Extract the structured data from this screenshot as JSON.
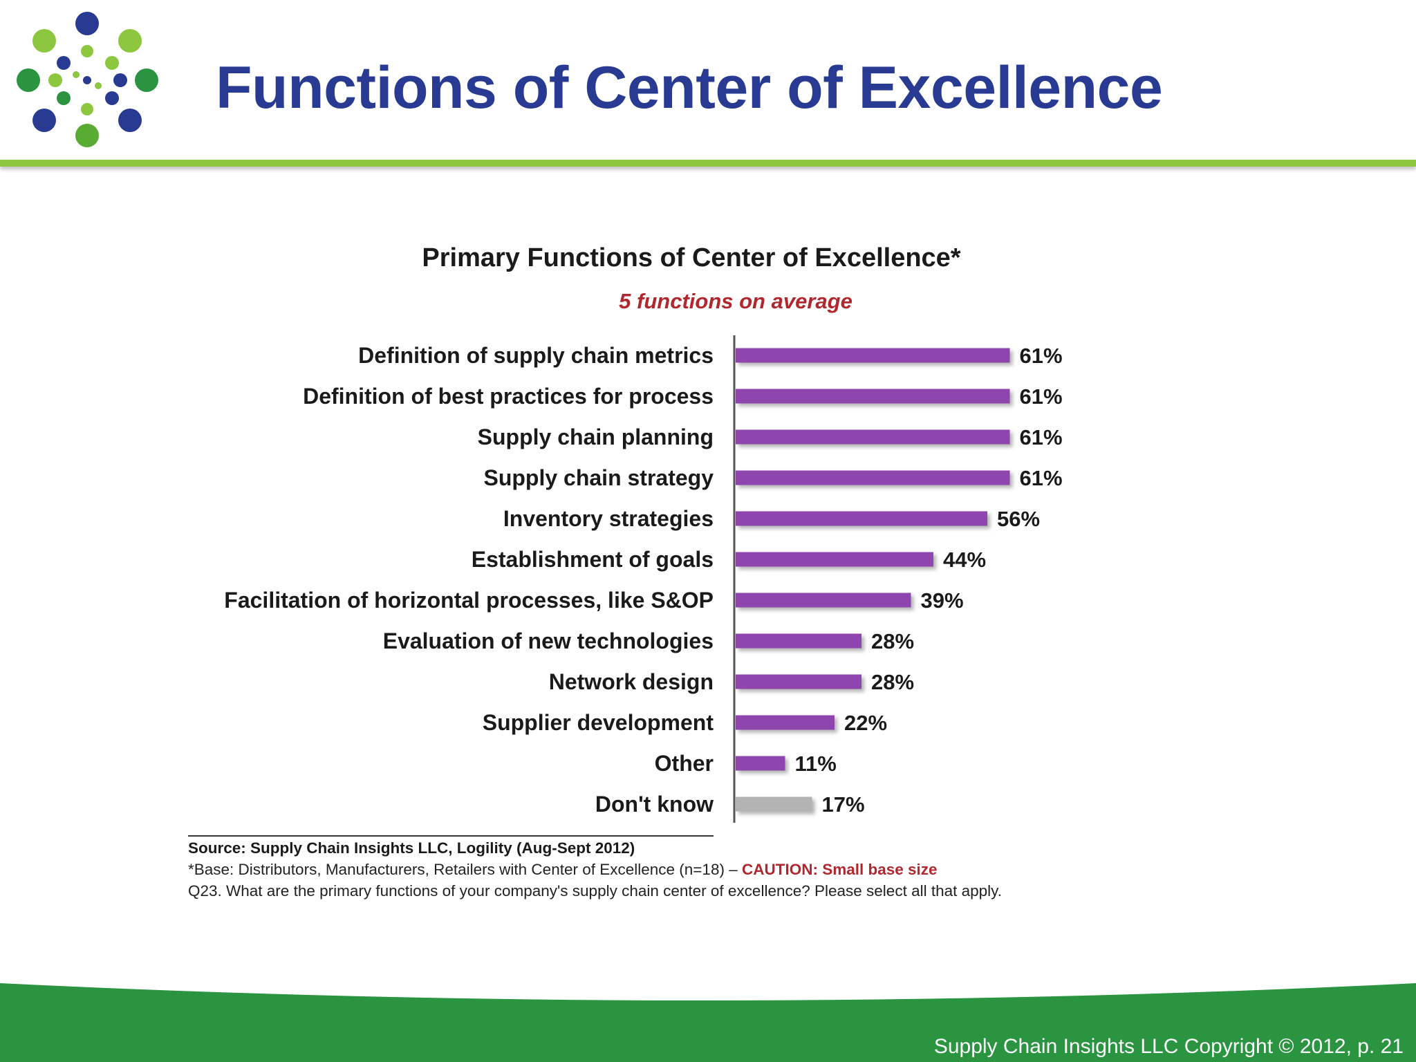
{
  "slide": {
    "title": "Functions of Center of Excellence",
    "footer": "Supply Chain Insights LLC Copyright © 2012, p. 21"
  },
  "colors": {
    "title": "#283a91",
    "accent_green": "#8dc63f",
    "footer_green": "#2a9440",
    "bar": "#8e44ad",
    "bar_other": "#b3b3b3",
    "subtitle_red": "#b0272d"
  },
  "chart_data": {
    "type": "bar",
    "orientation": "horizontal",
    "title": "Primary Functions of Center of Excellence*",
    "subtitle": "5 functions on average",
    "categories": [
      "Definition of supply chain metrics",
      "Definition of best practices for process",
      "Supply chain planning",
      "Supply chain strategy",
      "Inventory strategies",
      "Establishment of goals",
      "Facilitation of horizontal processes, like S&OP",
      "Evaluation of new technologies",
      "Network design",
      "Supplier development",
      "Other",
      "Don't know"
    ],
    "values": [
      61,
      61,
      61,
      61,
      56,
      44,
      39,
      28,
      28,
      22,
      11,
      17
    ],
    "value_labels": [
      "61%",
      "61%",
      "61%",
      "61%",
      "56%",
      "44%",
      "39%",
      "28%",
      "28%",
      "22%",
      "11%",
      "17%"
    ],
    "unit": "%",
    "xlim": [
      0,
      100
    ],
    "grid": false,
    "legend": "none",
    "highlight": {
      "Don't know": "gray"
    }
  },
  "notes": {
    "source": "Source:  Supply Chain Insights LLC, Logility (Aug-Sept 2012)",
    "base": "*Base:  Distributors, Manufacturers, Retailers with  Center of Excellence (n=18) – ",
    "caution": "CAUTION:  Small base size",
    "question": "Q23. What are the primary functions of your company's supply chain center of excellence?  Please select all that apply."
  }
}
